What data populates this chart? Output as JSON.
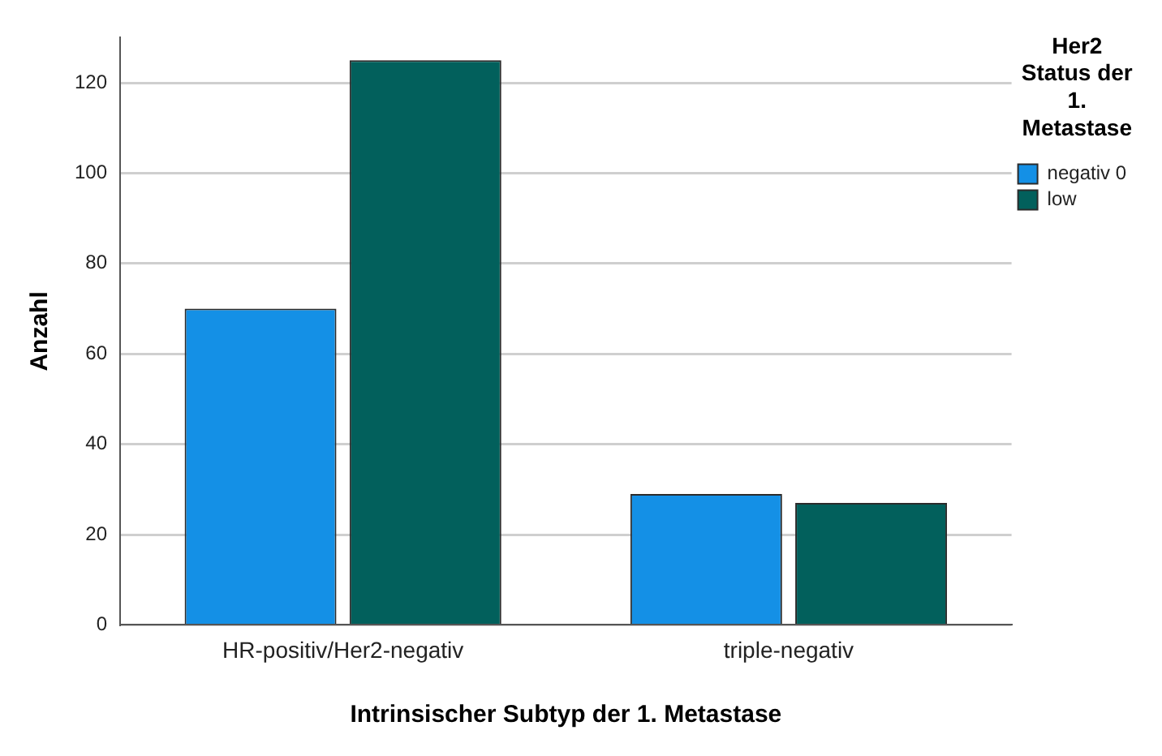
{
  "chart_data": {
    "type": "bar",
    "xlabel": "Intrinsischer Subtyp der 1. Metastase",
    "ylabel": "Anzahl",
    "legend_title": "Her2 Status der 1. Metastase",
    "categories": [
      "HR-positiv/Her2-negativ",
      "triple-negativ"
    ],
    "series": [
      {
        "name": "negativ 0",
        "color": "#1490e6",
        "values": [
          70,
          29
        ]
      },
      {
        "name": "low",
        "color": "#02605c",
        "values": [
          125,
          27
        ]
      }
    ],
    "ylim": [
      0,
      130
    ],
    "yticks": [
      0,
      20,
      40,
      60,
      80,
      100,
      120
    ],
    "grid": "y",
    "legend": "top right"
  }
}
